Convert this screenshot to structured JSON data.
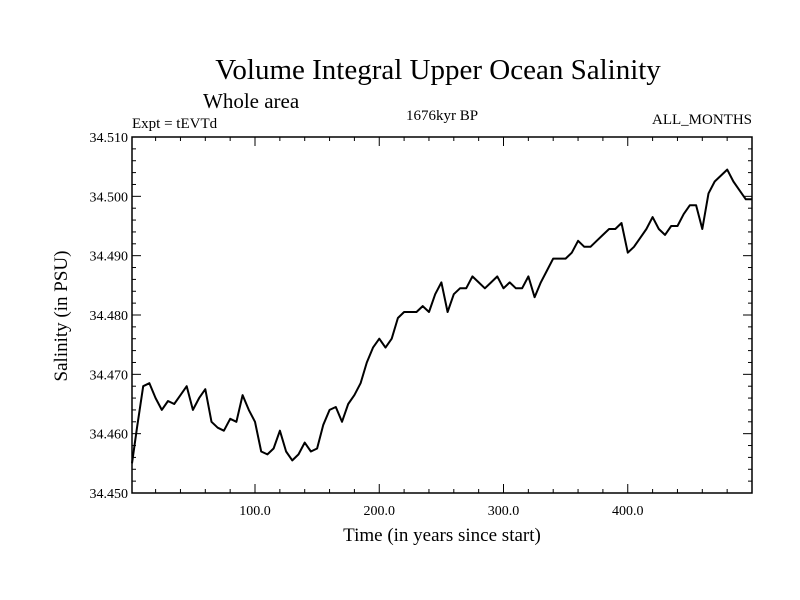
{
  "chart_data": {
    "type": "line",
    "title": "Volume Integral Upper Ocean Salinity",
    "subtitle": "Whole area",
    "experiment": "Expt = tEVTd",
    "period": "1676kyr BP",
    "months": "ALL_MONTHS",
    "xlabel": "Time (in years since start)",
    "ylabel": "Salinity (in PSU)",
    "xlim": [
      1,
      500
    ],
    "ylim": [
      34.45,
      34.51
    ],
    "xticks": [
      100,
      200,
      300,
      400
    ],
    "xtick_labels": [
      "100.0",
      "200.0",
      "300.0",
      "400.0"
    ],
    "yticks": [
      34.45,
      34.46,
      34.47,
      34.48,
      34.49,
      34.5,
      34.51
    ],
    "ytick_labels": [
      "34.450",
      "34.460",
      "34.470",
      "34.480",
      "34.490",
      "34.500",
      "34.510"
    ],
    "series": [
      {
        "name": "Salinity",
        "x": [
          1,
          5,
          10,
          15,
          20,
          25,
          30,
          35,
          40,
          45,
          50,
          55,
          60,
          65,
          70,
          75,
          80,
          85,
          90,
          95,
          100,
          105,
          110,
          115,
          120,
          125,
          130,
          135,
          140,
          145,
          150,
          155,
          160,
          165,
          170,
          175,
          180,
          185,
          190,
          195,
          200,
          205,
          210,
          215,
          220,
          225,
          230,
          235,
          240,
          245,
          250,
          255,
          260,
          265,
          270,
          275,
          280,
          285,
          290,
          295,
          300,
          305,
          310,
          315,
          320,
          325,
          330,
          335,
          340,
          345,
          350,
          355,
          360,
          365,
          370,
          375,
          380,
          385,
          390,
          395,
          400,
          405,
          410,
          415,
          420,
          425,
          430,
          435,
          440,
          445,
          450,
          455,
          460,
          465,
          470,
          475,
          480,
          485,
          490,
          495,
          500
        ],
        "values": [
          34.455,
          34.461,
          34.468,
          34.4685,
          34.466,
          34.464,
          34.4655,
          34.465,
          34.4665,
          34.468,
          34.464,
          34.466,
          34.4675,
          34.462,
          34.461,
          34.4605,
          34.4625,
          34.462,
          34.4665,
          34.464,
          34.462,
          34.457,
          34.4565,
          34.4575,
          34.4605,
          34.457,
          34.4555,
          34.4565,
          34.4585,
          34.457,
          34.4575,
          34.4615,
          34.464,
          34.4645,
          34.462,
          34.465,
          34.4665,
          34.4685,
          34.472,
          34.4745,
          34.476,
          34.4745,
          34.476,
          34.4795,
          34.4805,
          34.4805,
          34.4805,
          34.4815,
          34.4805,
          34.4835,
          34.4855,
          34.4805,
          34.4835,
          34.4845,
          34.4845,
          34.4865,
          34.4855,
          34.4845,
          34.4855,
          34.4865,
          34.4845,
          34.4855,
          34.4845,
          34.4845,
          34.4865,
          34.483,
          34.4855,
          34.4875,
          34.4895,
          34.4895,
          34.4895,
          34.4905,
          34.4925,
          34.4915,
          34.4915,
          34.4925,
          34.4935,
          34.4945,
          34.4945,
          34.4955,
          34.4905,
          34.4915,
          34.493,
          34.4945,
          34.4965,
          34.4945,
          34.4935,
          34.495,
          34.495,
          34.497,
          34.4985,
          34.4985,
          34.4945,
          34.5005,
          34.5025,
          34.5035,
          34.5045,
          34.5025,
          34.501,
          34.4995,
          34.4995
        ]
      }
    ]
  }
}
